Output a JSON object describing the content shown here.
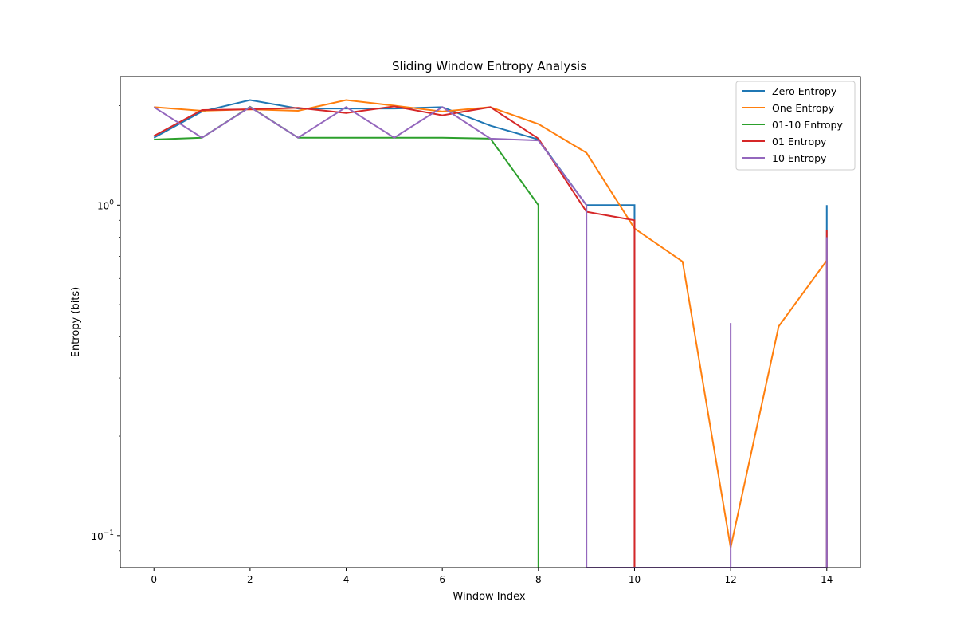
{
  "chart_data": {
    "type": "line",
    "title": "Sliding Window Entropy Analysis",
    "xlabel": "Window Index",
    "ylabel": "Entropy (bits)",
    "xlim": [
      -0.7,
      14.7
    ],
    "ylim": [
      0.08,
      2.45
    ],
    "yscale": "log",
    "grid": false,
    "legend_position": "top-right",
    "x_ticks": [
      0,
      2,
      4,
      6,
      8,
      10,
      12,
      14
    ],
    "x_tick_labels": [
      "0",
      "2",
      "4",
      "6",
      "8",
      "10",
      "12",
      "14"
    ],
    "y_ticks": [
      {
        "value": 0.1,
        "base": "10",
        "exp": "−1"
      },
      {
        "value": 1,
        "base": "10",
        "exp": "0"
      }
    ],
    "y_minor_ticks": [
      0.09,
      0.2,
      0.3,
      0.4,
      0.5,
      0.6,
      0.7,
      0.8,
      0.9,
      2.0
    ],
    "series": [
      {
        "name": "Zero Entropy",
        "color": "#1f77b4",
        "points": [
          [
            0,
            1.6
          ],
          [
            1,
            1.92
          ],
          [
            2,
            2.08
          ],
          [
            3,
            1.96
          ],
          [
            4,
            1.96
          ],
          [
            5,
            1.96
          ],
          [
            6,
            1.98
          ],
          [
            7,
            1.74
          ],
          [
            8,
            1.58
          ],
          [
            9,
            1.0
          ],
          [
            10,
            1.0
          ],
          [
            10,
            0.08
          ],
          [
            14,
            0.08
          ],
          [
            14,
            1.0
          ]
        ]
      },
      {
        "name": "One Entropy",
        "color": "#ff7f0e",
        "points": [
          [
            0,
            1.98
          ],
          [
            1,
            1.93
          ],
          [
            2,
            1.95
          ],
          [
            3,
            1.93
          ],
          [
            4,
            2.08
          ],
          [
            5,
            2.0
          ],
          [
            6,
            1.92
          ],
          [
            7,
            1.98
          ],
          [
            8,
            1.76
          ],
          [
            9,
            1.44
          ],
          [
            10,
            0.85
          ],
          [
            11,
            0.675
          ],
          [
            12,
            0.092
          ],
          [
            13,
            0.43
          ],
          [
            14,
            0.68
          ]
        ]
      },
      {
        "name": "01-10 Entropy",
        "color": "#2ca02c",
        "points": [
          [
            0,
            1.58
          ],
          [
            1,
            1.6
          ],
          [
            2,
            1.985
          ],
          [
            3,
            1.6
          ],
          [
            4,
            1.6
          ],
          [
            5,
            1.6
          ],
          [
            6,
            1.6
          ],
          [
            7,
            1.59
          ],
          [
            8,
            1.0
          ],
          [
            8,
            0.08
          ]
        ]
      },
      {
        "name": "01 Entropy",
        "color": "#d62728",
        "points": [
          [
            0,
            1.62
          ],
          [
            1,
            1.94
          ],
          [
            2,
            1.95
          ],
          [
            3,
            1.97
          ],
          [
            4,
            1.9
          ],
          [
            5,
            1.99
          ],
          [
            6,
            1.87
          ],
          [
            7,
            1.98
          ],
          [
            8,
            1.59
          ],
          [
            9,
            0.955
          ],
          [
            10,
            0.9
          ],
          [
            10,
            0.08
          ],
          [
            14,
            0.08
          ],
          [
            14,
            0.84
          ]
        ]
      },
      {
        "name": "10 Entropy",
        "color": "#9467bd",
        "points": [
          [
            0,
            1.98
          ],
          [
            1,
            1.6
          ],
          [
            2,
            1.98
          ],
          [
            3,
            1.6
          ],
          [
            4,
            1.98
          ],
          [
            5,
            1.6
          ],
          [
            6,
            1.98
          ],
          [
            7,
            1.59
          ],
          [
            8,
            1.57
          ],
          [
            9,
            1.0
          ],
          [
            9,
            0.08
          ],
          [
            12,
            0.08
          ],
          [
            12,
            0.44
          ],
          [
            12,
            0.08
          ],
          [
            14,
            0.08
          ],
          [
            14,
            0.8
          ]
        ]
      }
    ]
  }
}
